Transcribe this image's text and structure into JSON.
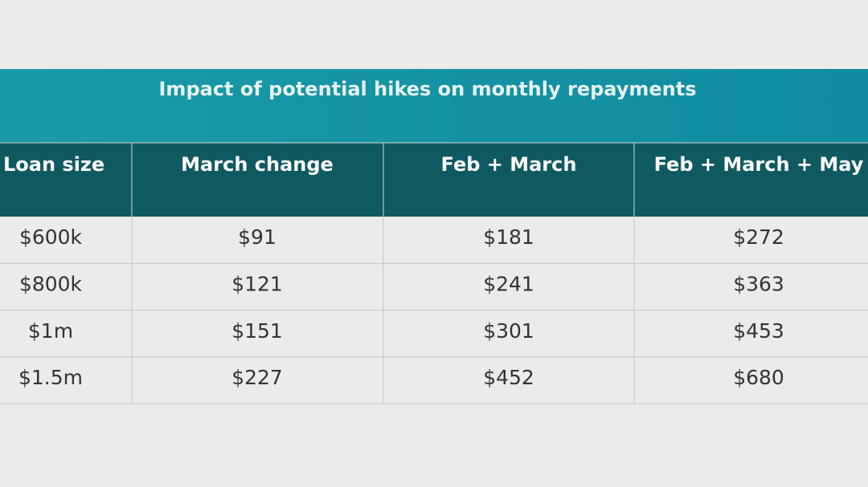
{
  "header": {
    "title": "Impact of potential hikes on monthly repayments"
  },
  "table": {
    "columns": [
      "Loan size",
      "March change",
      "Feb + March",
      "Feb + March + May"
    ],
    "rows": [
      [
        "$600k",
        "$91",
        "$181",
        "$272"
      ],
      [
        "$800k",
        "$121",
        "$241",
        "$363"
      ],
      [
        "$1m",
        "$151",
        "$301",
        "$453"
      ],
      [
        "$1.5m",
        "$227",
        "$452",
        "$680"
      ]
    ]
  }
}
